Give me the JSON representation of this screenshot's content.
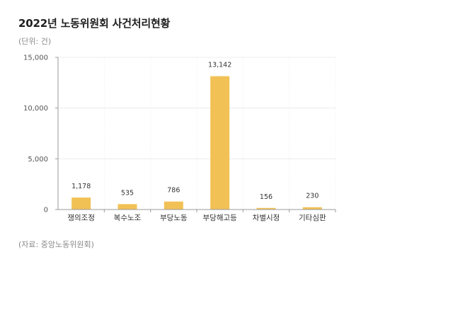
{
  "header": {
    "title": "2022년 노동위원회 사건처리현황",
    "unit": "(단위: 건)"
  },
  "footer": {
    "source": "(자료: 중앙노동위원회)"
  },
  "colors": {
    "bar": "#f2c155",
    "axis": "#9a9a9a",
    "grid": "#ececec"
  },
  "chart_data": {
    "type": "bar",
    "title": "",
    "xlabel": "",
    "ylabel": "",
    "categories": [
      "쟁의조정",
      "복수노조",
      "부당노동",
      "부당해고등",
      "차별시정",
      "기타심판"
    ],
    "values": [
      1178,
      535,
      786,
      13142,
      156,
      230
    ],
    "value_labels": [
      "1,178",
      "535",
      "786",
      "13,142",
      "156",
      "230"
    ],
    "ylim": [
      0,
      15000
    ],
    "yticks": [
      0,
      5000,
      10000,
      15000
    ],
    "ytick_labels": [
      "0",
      "5,000",
      "10,000",
      "15,000"
    ],
    "grid": true,
    "legend": "none"
  }
}
